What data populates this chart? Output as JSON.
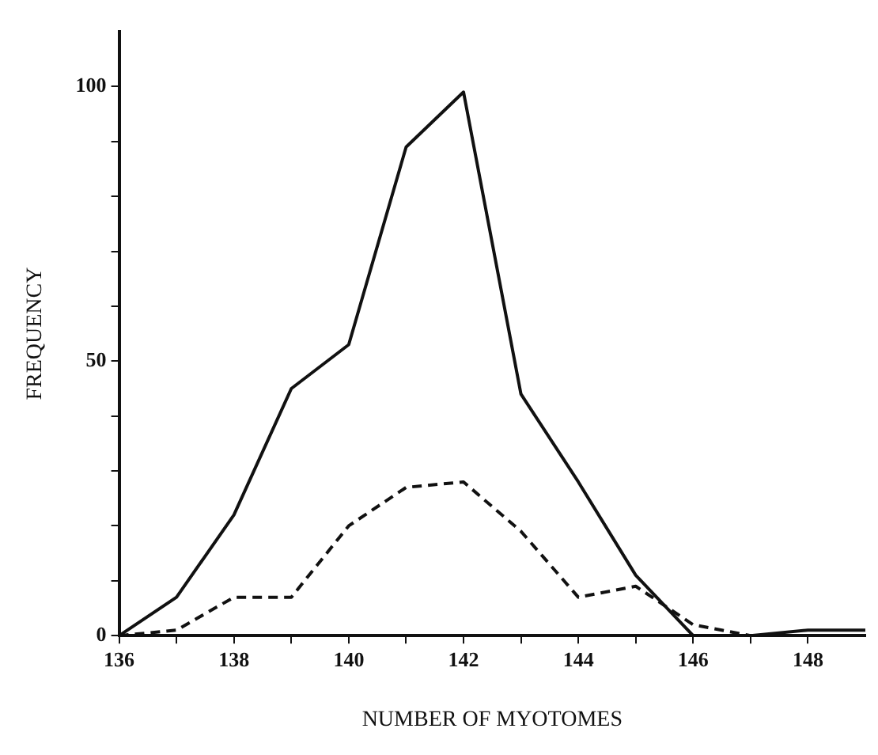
{
  "chart_data": {
    "type": "line",
    "xlabel": "NUMBER OF MYOTOMES",
    "ylabel": "FREQUENCY",
    "x": [
      136,
      137,
      138,
      139,
      140,
      141,
      142,
      143,
      144,
      145,
      146,
      147,
      148,
      149
    ],
    "series": [
      {
        "color": "#111111",
        "line_style": "solid",
        "values": [
          0,
          7,
          22,
          45,
          53,
          89,
          99,
          44,
          28,
          11,
          0,
          0,
          1,
          1
        ]
      },
      {
        "color": "#111111",
        "line_style": "dashed",
        "x": [
          136,
          137,
          138,
          139,
          140,
          141,
          142,
          143,
          144,
          145,
          146,
          147
        ],
        "values": [
          0,
          1,
          7,
          7,
          20,
          27,
          28,
          19,
          7,
          9,
          2,
          0
        ]
      }
    ],
    "xlim": [
      136,
      149
    ],
    "xticks": [
      136,
      {
        "value": 137,
        "label": null
      },
      138,
      {
        "value": 139,
        "label": null
      },
      140,
      {
        "value": 141,
        "label": null
      },
      142,
      {
        "value": 143,
        "label": null
      },
      144,
      {
        "value": 145,
        "label": null
      },
      146,
      {
        "value": 147,
        "label": null
      },
      148
    ],
    "ylim": [
      0,
      110
    ],
    "yticks": [
      0,
      {
        "value": 10,
        "label": null
      },
      {
        "value": 20,
        "label": null
      },
      {
        "value": 30,
        "label": null
      },
      {
        "value": 40,
        "label": null
      },
      50,
      {
        "value": 60,
        "label": null
      },
      {
        "value": 70,
        "label": null
      },
      {
        "value": 80,
        "label": null
      },
      {
        "value": 90,
        "label": null
      },
      100
    ],
    "grid": false,
    "legend": false,
    "marker": "none"
  }
}
